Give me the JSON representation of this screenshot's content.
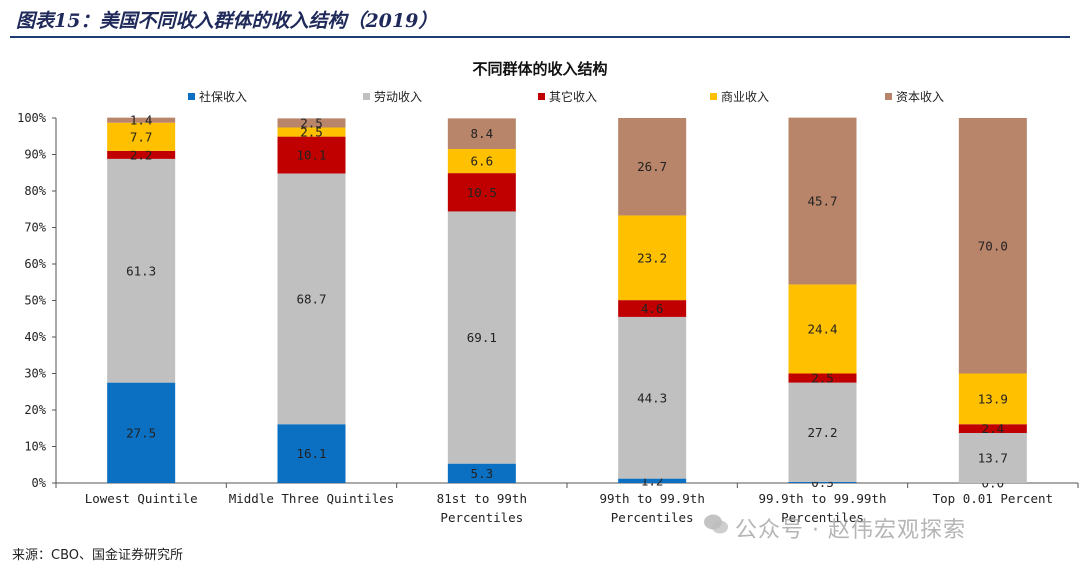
{
  "header": {
    "figure_title": "图表15：美国不同收入群体的收入结构（2019）"
  },
  "source_note": "来源：CBO、国金证券研究所",
  "watermark": "公众号 · 赵伟宏观探索",
  "colors": {
    "社保收入": "#0b6fc2",
    "劳动收入": "#c0c0c0",
    "其它收入": "#c00000",
    "商业收入": "#ffc000",
    "资本收入": "#b8856a"
  },
  "chart_data": {
    "type": "bar",
    "stacked": true,
    "title": "不同群体的收入结构",
    "legend_position": "top",
    "ylim": [
      0,
      100
    ],
    "y_ticks": [
      "0%",
      "10%",
      "20%",
      "30%",
      "40%",
      "50%",
      "60%",
      "70%",
      "80%",
      "90%",
      "100%"
    ],
    "categories": [
      [
        "Lowest Quintile"
      ],
      [
        "Middle Three Quintiles"
      ],
      [
        "81st to 99th",
        "Percentiles"
      ],
      [
        "99th to 99.9th",
        "Percentiles"
      ],
      [
        "99.9th to 99.99th",
        "Percentiles"
      ],
      [
        "Top 0.01 Percent"
      ]
    ],
    "series": [
      {
        "name": "社保收入",
        "values": [
          27.5,
          16.1,
          5.3,
          1.2,
          0.3,
          0.0
        ]
      },
      {
        "name": "劳动收入",
        "values": [
          61.3,
          68.7,
          69.1,
          44.3,
          27.2,
          13.7
        ]
      },
      {
        "name": "其它收入",
        "values": [
          2.2,
          10.1,
          10.5,
          4.6,
          2.5,
          2.4
        ]
      },
      {
        "name": "商业收入",
        "values": [
          7.7,
          2.5,
          6.6,
          23.2,
          24.4,
          13.9
        ]
      },
      {
        "name": "资本收入",
        "values": [
          1.4,
          2.5,
          8.4,
          26.7,
          45.7,
          70.0
        ]
      }
    ]
  }
}
